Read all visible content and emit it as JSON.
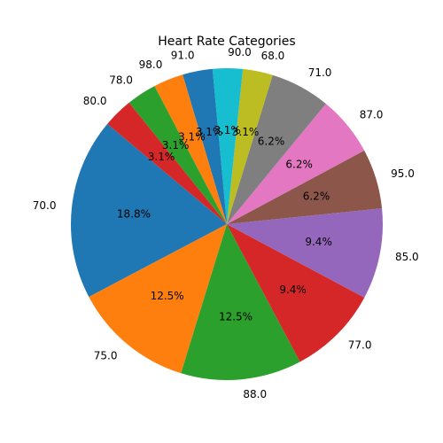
{
  "chart_data": {
    "type": "pie",
    "title": "Heart Rate Categories",
    "labels": [
      "70.0",
      "75.0",
      "88.0",
      "77.0",
      "85.0",
      "95.0",
      "87.0",
      "71.0",
      "68.0",
      "90.0",
      "91.0",
      "98.0",
      "78.0",
      "80.0"
    ],
    "values": [
      18.8,
      12.5,
      12.5,
      9.4,
      9.4,
      6.2,
      6.2,
      6.2,
      3.1,
      3.1,
      3.1,
      3.1,
      3.1,
      3.1
    ],
    "pct_labels": [
      "18.8%",
      "12.5%",
      "12.5%",
      "9.4%",
      "9.4%",
      "6.2%",
      "6.2%",
      "6.2%",
      "3.1%",
      "3.1%",
      "3.1%",
      "3.1%",
      "3.1%",
      "3.1%"
    ],
    "colors": [
      "#1f77b4",
      "#ff7f0e",
      "#2ca02c",
      "#d62728",
      "#9467bd",
      "#8c564b",
      "#e377c2",
      "#7f7f7f",
      "#bcbd22",
      "#17becf",
      "#1f77b4",
      "#ff7f0e",
      "#2ca02c",
      "#d62728"
    ],
    "start_angle_deg": 140,
    "direction": "counterclockwise"
  }
}
